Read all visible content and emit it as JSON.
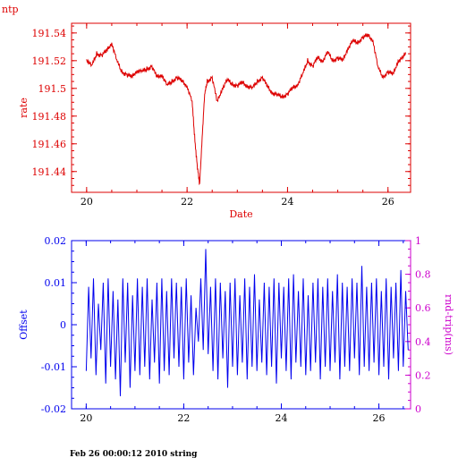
{
  "corner_label": "ntp",
  "footer": "Feb 26 00:00:12 2010 string",
  "colors": {
    "top": "#dd0000",
    "bottom": "#0000ee",
    "right_axis": "#cc00cc",
    "text": "#000000"
  },
  "chart_data": [
    {
      "type": "line",
      "xlabel": "Date",
      "ylabel": "rate",
      "xlim": [
        19.7,
        26.45
      ],
      "ylim": [
        191.425,
        191.547
      ],
      "xticks": [
        "20",
        "22",
        "24",
        "26"
      ],
      "yticks": [
        "191.44",
        "191.46",
        "191.48",
        "191.5",
        "191.52",
        "191.54"
      ],
      "series": [
        {
          "x": [
            20.0,
            20.1,
            20.2,
            20.3,
            20.4,
            20.5,
            20.6,
            20.7,
            20.8,
            20.9,
            21.0,
            21.1,
            21.2,
            21.3,
            21.4,
            21.5,
            21.6,
            21.7,
            21.8,
            21.9,
            22.0,
            22.1,
            22.15,
            22.2,
            22.25,
            22.3,
            22.35,
            22.4,
            22.5,
            22.6,
            22.7,
            22.8,
            22.9,
            23.0,
            23.1,
            23.2,
            23.3,
            23.4,
            23.5,
            23.6,
            23.7,
            23.8,
            23.9,
            24.0,
            24.1,
            24.2,
            24.3,
            24.4,
            24.5,
            24.6,
            24.7,
            24.8,
            24.9,
            25.0,
            25.1,
            25.2,
            25.3,
            25.4,
            25.5,
            25.6,
            25.7,
            25.8,
            25.9,
            26.0,
            26.1,
            26.2,
            26.3,
            26.35
          ],
          "y": [
            191.521,
            191.516,
            191.525,
            191.524,
            191.527,
            191.533,
            191.52,
            191.512,
            191.51,
            191.508,
            191.513,
            191.512,
            191.514,
            191.516,
            191.508,
            191.51,
            191.502,
            191.505,
            191.508,
            191.505,
            191.502,
            191.49,
            191.465,
            191.445,
            191.43,
            191.465,
            191.495,
            191.505,
            191.508,
            191.49,
            191.5,
            191.506,
            191.503,
            191.502,
            191.504,
            191.502,
            191.5,
            191.505,
            191.508,
            191.501,
            191.497,
            191.495,
            191.494,
            191.496,
            191.5,
            191.503,
            191.51,
            191.52,
            191.516,
            191.522,
            191.52,
            191.526,
            191.52,
            191.522,
            191.52,
            191.529,
            191.534,
            191.533,
            191.537,
            191.538,
            191.535,
            191.515,
            191.508,
            191.512,
            191.51,
            191.52,
            191.522,
            191.526
          ]
        }
      ]
    },
    {
      "type": "line",
      "ylabel": "Offset",
      "y2label": "rnd-trip(ms)",
      "xlim": [
        19.7,
        26.65
      ],
      "ylim": [
        -0.02,
        0.02
      ],
      "y2lim": [
        0,
        1
      ],
      "xticks": [
        "20",
        "22",
        "24",
        "26"
      ],
      "yticks": [
        "-0.02",
        "-0.01",
        "0",
        "0.01",
        "0.02"
      ],
      "y2ticks": [
        "0",
        "0.2",
        "0.4",
        "0.6",
        "0.8",
        "1"
      ],
      "series": [
        {
          "x_start": 20.0,
          "x_step": 0.05,
          "y": [
            -0.011,
            0.009,
            -0.008,
            0.011,
            -0.012,
            0.005,
            -0.006,
            0.01,
            -0.014,
            0.011,
            -0.01,
            0.008,
            -0.013,
            0.006,
            -0.017,
            0.011,
            -0.009,
            0.01,
            -0.015,
            0.007,
            -0.011,
            0.011,
            -0.012,
            0.009,
            -0.01,
            0.011,
            -0.013,
            0.006,
            -0.009,
            0.01,
            -0.014,
            0.011,
            -0.011,
            0.008,
            -0.012,
            0.011,
            -0.008,
            0.01,
            -0.01,
            0.009,
            -0.013,
            0.011,
            -0.009,
            0.007,
            -0.012,
            0.004,
            -0.004,
            0.011,
            -0.006,
            0.018,
            -0.007,
            0.009,
            -0.011,
            0.011,
            -0.013,
            0.01,
            -0.008,
            0.008,
            -0.015,
            0.01,
            -0.01,
            0.011,
            -0.012,
            0.007,
            -0.009,
            0.011,
            -0.013,
            0.009,
            -0.01,
            0.012,
            -0.011,
            0.006,
            -0.009,
            0.01,
            -0.012,
            0.009,
            -0.01,
            0.011,
            -0.014,
            0.01,
            -0.008,
            0.009,
            -0.011,
            0.011,
            -0.013,
            0.012,
            -0.009,
            0.008,
            -0.01,
            0.011,
            -0.012,
            0.007,
            -0.011,
            0.01,
            -0.009,
            0.011,
            -0.013,
            0.009,
            -0.01,
            0.011,
            -0.011,
            0.008,
            -0.009,
            0.012,
            -0.013,
            0.01,
            -0.01,
            0.009,
            -0.011,
            0.011,
            -0.008,
            0.01,
            -0.012,
            0.014,
            -0.01,
            0.009,
            -0.011,
            0.01,
            -0.009,
            0.011,
            -0.012,
            0.008,
            -0.01,
            0.011,
            -0.013,
            0.009,
            -0.008,
            0.01,
            -0.011,
            0.013,
            -0.01,
            0.008,
            -0.006
          ]
        }
      ]
    }
  ]
}
